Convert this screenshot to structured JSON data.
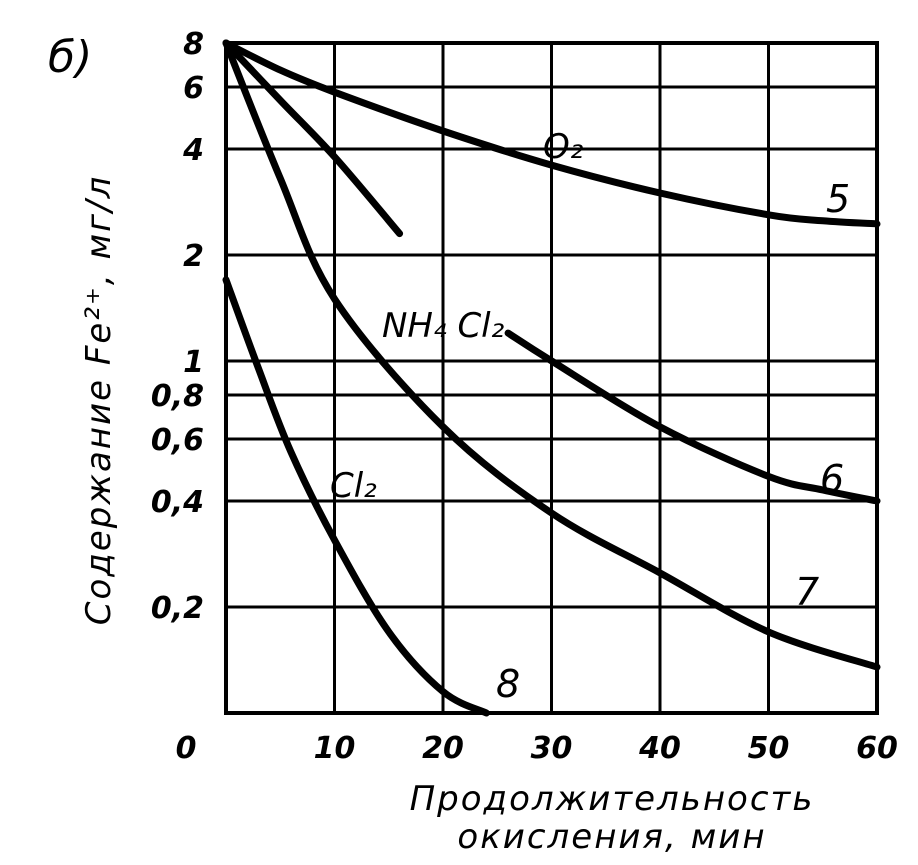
{
  "chart_data": {
    "type": "line",
    "panel_label": "б)",
    "ylabel": "Содержание Fe²⁺, мг/л",
    "xlabel_lines": [
      "Продолжительность",
      "окисления, мин"
    ],
    "xlim": [
      0,
      60
    ],
    "ylim": [
      0.1,
      8
    ],
    "y_scale": "log",
    "grid": true,
    "x_ticks": [
      "0",
      "10",
      "20",
      "30",
      "40",
      "50",
      "60"
    ],
    "y_ticks": [
      "8",
      "6",
      "4",
      "2",
      "1",
      "0,8",
      "0,6",
      "0,4",
      "0,2"
    ],
    "y_tick_values": [
      8,
      6,
      4,
      2,
      1,
      0.8,
      0.6,
      0.4,
      0.2
    ],
    "series_labels": [
      "O₂",
      "NH₄ Cl₂",
      "Cl₂"
    ],
    "series": [
      {
        "name": "5",
        "x": [
          0,
          5,
          10,
          20,
          30,
          40,
          50,
          55,
          60
        ],
        "y": [
          8,
          6.7,
          5.8,
          4.5,
          3.6,
          3.0,
          2.6,
          2.5,
          2.45
        ]
      },
      {
        "name": "",
        "x": [
          0,
          5,
          10,
          16
        ],
        "y": [
          8,
          5.5,
          3.8,
          2.3
        ]
      },
      {
        "name": "6",
        "x": [
          26,
          30,
          40,
          50,
          55,
          60
        ],
        "y": [
          1.2,
          1.0,
          0.65,
          0.47,
          0.43,
          0.4
        ]
      },
      {
        "name": "7",
        "x": [
          0,
          5,
          10,
          20,
          30,
          40,
          50,
          60
        ],
        "y": [
          8,
          3.3,
          1.5,
          0.65,
          0.37,
          0.25,
          0.17,
          0.135
        ]
      },
      {
        "name": "8",
        "x": [
          0,
          3,
          6,
          10,
          15,
          20,
          24
        ],
        "y": [
          1.7,
          0.95,
          0.55,
          0.31,
          0.17,
          0.115,
          0.1
        ]
      }
    ]
  }
}
